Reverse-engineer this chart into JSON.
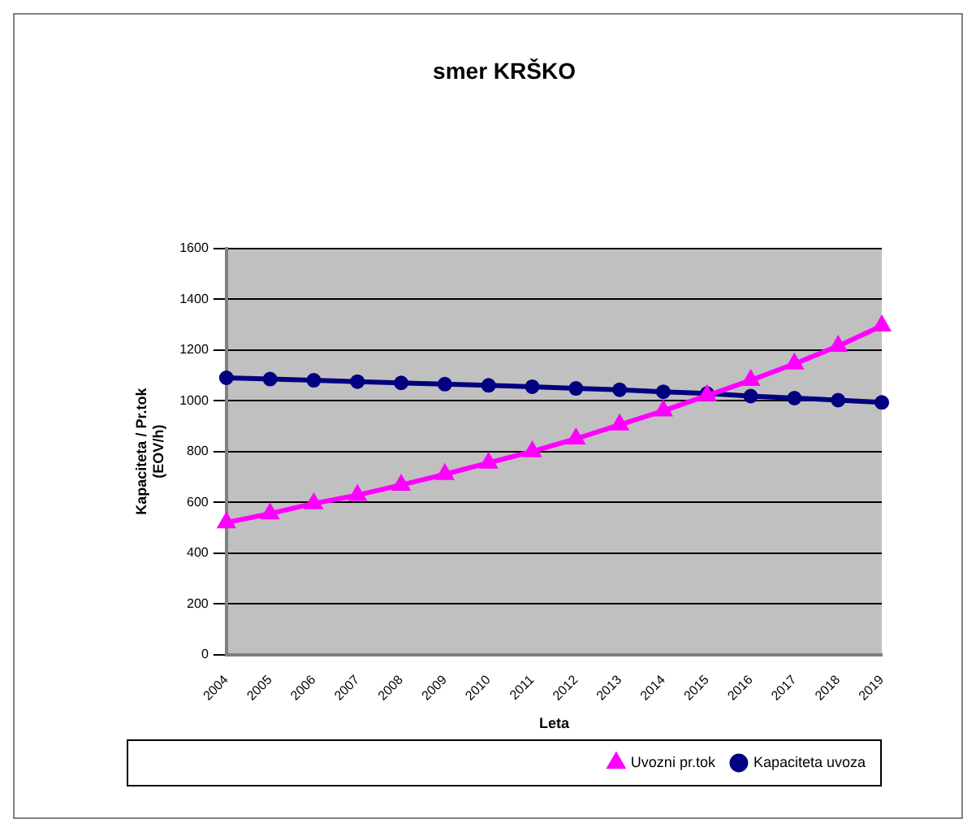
{
  "chart_data": {
    "type": "line",
    "title": "smer KRŠKO",
    "xlabel": "Leta",
    "ylabel": "Kapaciteta / Pr.tok\n(EOV/h)",
    "categories": [
      "2004",
      "2005",
      "2006",
      "2007",
      "2008",
      "2009",
      "2010",
      "2011",
      "2012",
      "2013",
      "2014",
      "2015",
      "2016",
      "2017",
      "2018",
      "2019"
    ],
    "series": [
      {
        "name": "Kapaciteta uvoza",
        "color": "#000080",
        "marker": "circle",
        "values": [
          1090,
          1085,
          1080,
          1075,
          1070,
          1065,
          1060,
          1055,
          1048,
          1043,
          1035,
          1028,
          1018,
          1010,
          1002,
          993
        ]
      },
      {
        "name": "Uvozni pr.tok",
        "color": "#ff00ff",
        "marker": "triangle",
        "values": [
          520,
          555,
          595,
          628,
          668,
          710,
          755,
          800,
          850,
          905,
          960,
          1020,
          1080,
          1145,
          1215,
          1295
        ]
      }
    ],
    "ylim": [
      0,
      1600
    ],
    "yticks": [
      0,
      200,
      400,
      600,
      800,
      1000,
      1200,
      1400,
      1600
    ],
    "grid": "y",
    "legend": "bottom right",
    "line_style": "solid"
  }
}
